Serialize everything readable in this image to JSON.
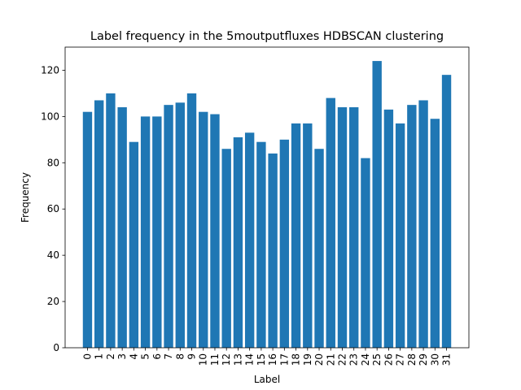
{
  "chart_data": {
    "type": "bar",
    "title": "Label frequency in the 5moutputfluxes HDBSCAN clustering",
    "xlabel": "Label",
    "ylabel": "Frequency",
    "categories": [
      "0",
      "1",
      "2",
      "3",
      "4",
      "5",
      "6",
      "7",
      "8",
      "9",
      "10",
      "11",
      "12",
      "13",
      "14",
      "15",
      "16",
      "17",
      "18",
      "19",
      "20",
      "21",
      "22",
      "23",
      "24",
      "25",
      "26",
      "27",
      "28",
      "29",
      "30",
      "31"
    ],
    "values": [
      102,
      107,
      110,
      104,
      89,
      100,
      100,
      105,
      106,
      110,
      102,
      101,
      86,
      91,
      93,
      89,
      84,
      90,
      97,
      97,
      86,
      108,
      104,
      104,
      82,
      124,
      103,
      97,
      105,
      107,
      99,
      118
    ],
    "ylim": [
      0,
      130
    ],
    "yticks": [
      0,
      20,
      40,
      60,
      80,
      100,
      120
    ],
    "bar_color": "#1f77b4",
    "grid": false
  }
}
